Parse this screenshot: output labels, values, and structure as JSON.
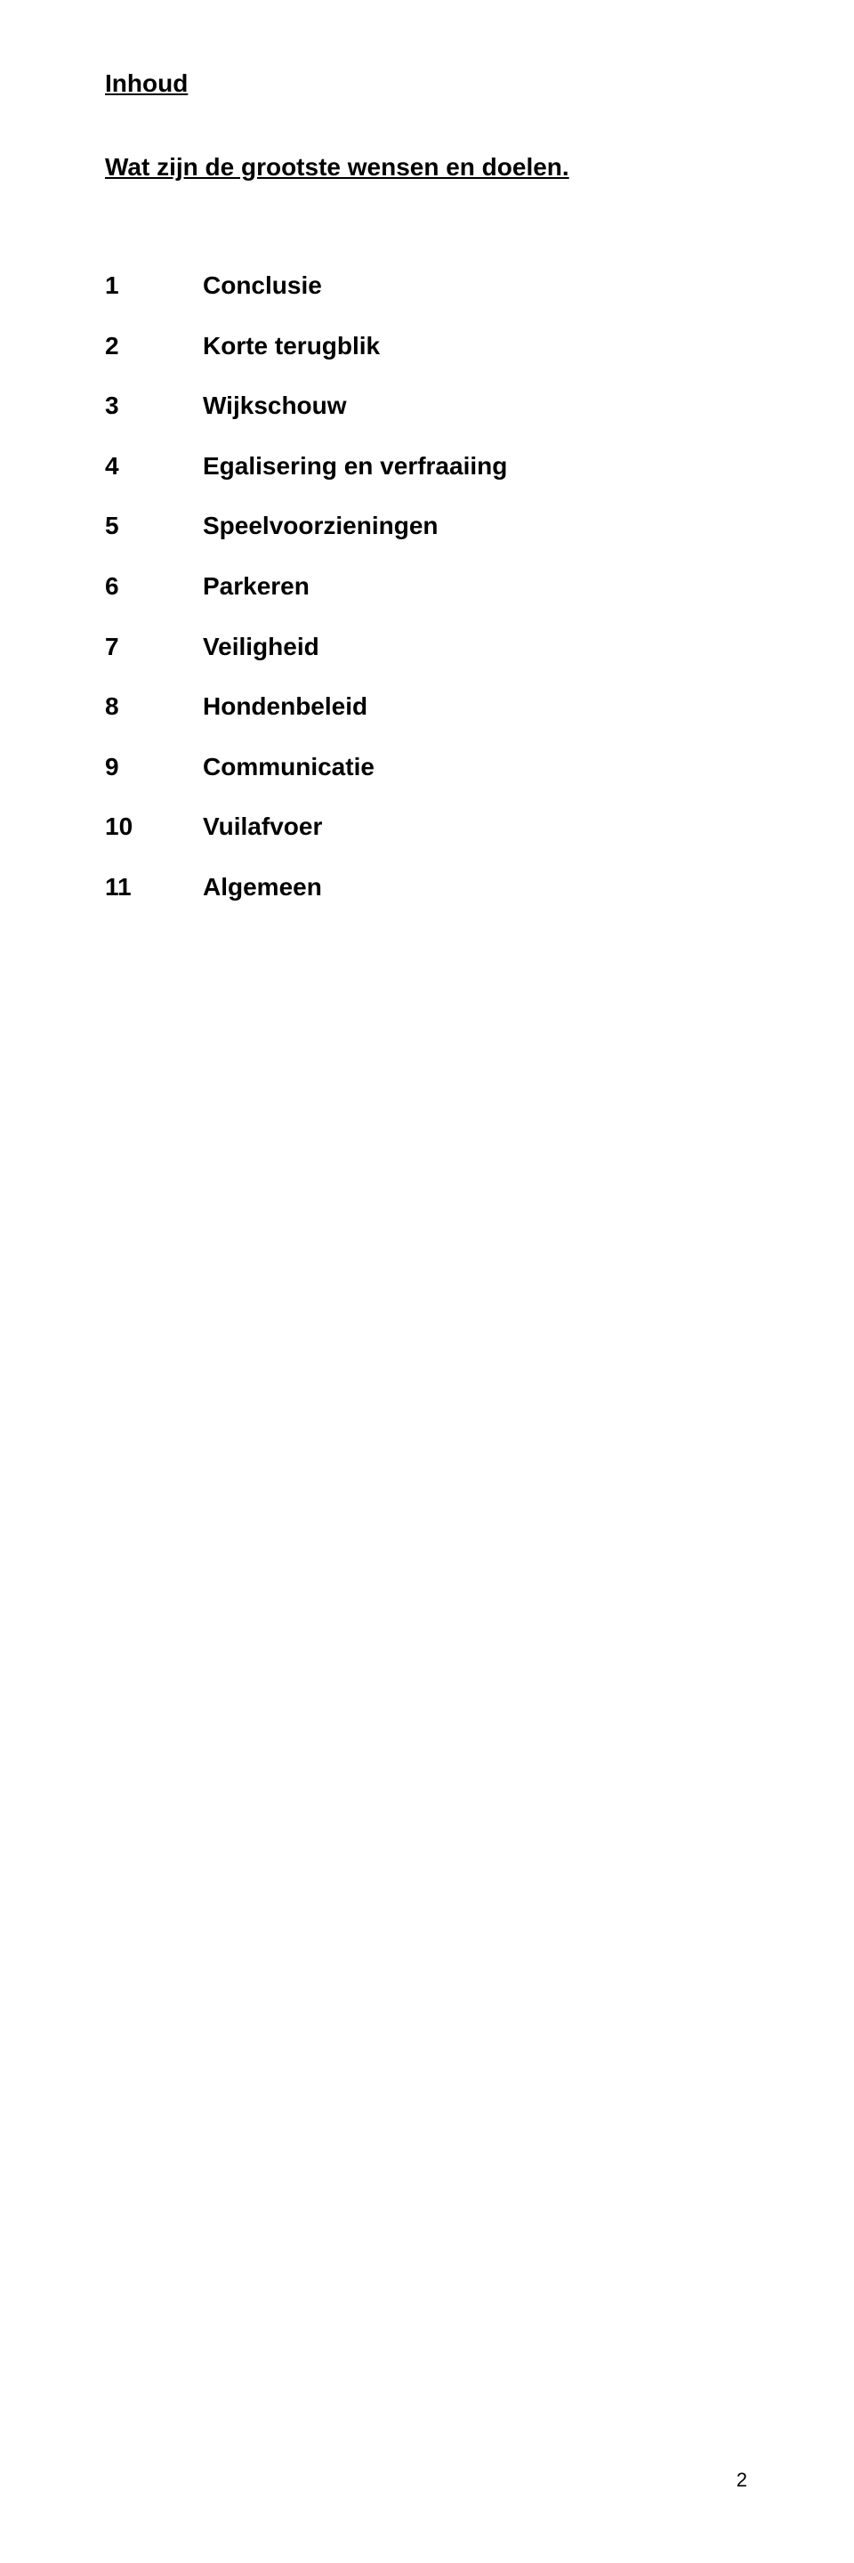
{
  "document": {
    "title": "Inhoud",
    "subtitle": "Wat zijn de grootste wensen en doelen.",
    "page_number": "2",
    "background_color": "#ffffff",
    "text_color": "#000000",
    "title_fontsize": 28,
    "body_fontsize": 28,
    "page_number_fontsize": 22,
    "font_family": "Arial",
    "toc": [
      {
        "num": "1",
        "label": "Conclusie"
      },
      {
        "num": "2",
        "label": "Korte terugblik"
      },
      {
        "num": "3",
        "label": "Wijkschouw"
      },
      {
        "num": "4",
        "label": "Egalisering en verfraaiing"
      },
      {
        "num": "5",
        "label": "Speelvoorzieningen"
      },
      {
        "num": "6",
        "label": "Parkeren"
      },
      {
        "num": "7",
        "label": "Veiligheid"
      },
      {
        "num": "8",
        "label": "Hondenbeleid"
      },
      {
        "num": "9",
        "label": "Communicatie"
      },
      {
        "num": "10",
        "label": "Vuilafvoer"
      },
      {
        "num": "11",
        "label": "Algemeen"
      }
    ]
  }
}
